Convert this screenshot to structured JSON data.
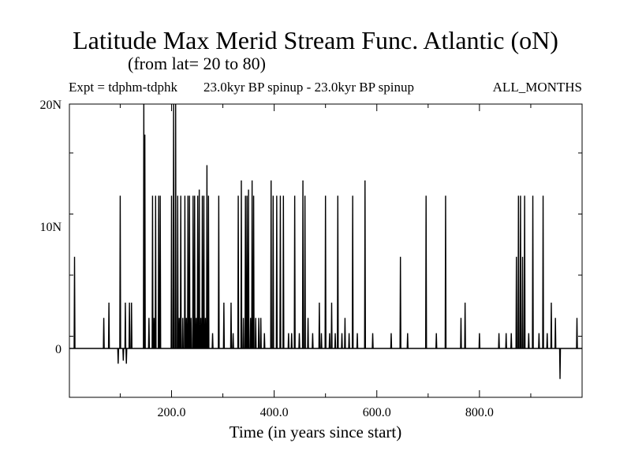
{
  "header": {
    "title": "Latitude Max Merid Stream Func. Atlantic (oN)",
    "subtitle": "(from lat= 20 to 80)",
    "expt": "Expt = tdphm-tdphk",
    "runs": "23.0kyr BP spinup - 23.0kyr BP spinup",
    "months": "ALL_MONTHS"
  },
  "chart_data": {
    "type": "line",
    "title": "Latitude Max Merid Stream Func. Atlantic (oN)",
    "xlabel": "Time (in years since start)",
    "ylabel": "",
    "xlim": [
      1,
      1000
    ],
    "ylim": [
      -4,
      20
    ],
    "x_ticks": [
      {
        "value": 200,
        "label": "200.0"
      },
      {
        "value": 400,
        "label": "400.0"
      },
      {
        "value": 600,
        "label": "600.0"
      },
      {
        "value": 800,
        "label": "800.0"
      }
    ],
    "y_ticks": [
      {
        "value": 0,
        "label": "0"
      },
      {
        "value": 10,
        "label": "10N"
      },
      {
        "value": 20,
        "label": "20N"
      }
    ],
    "baseline": 0,
    "series": [
      {
        "color": "#000000",
        "spikes": [
          [
            11,
            7.5
          ],
          [
            68,
            2.5
          ],
          [
            78,
            3.75
          ],
          [
            96,
            -1.25
          ],
          [
            100,
            12.5
          ],
          [
            106,
            -1.0
          ],
          [
            110,
            3.75
          ],
          [
            112,
            -1.25
          ],
          [
            118,
            3.75
          ],
          [
            122,
            3.75
          ],
          [
            146,
            20.0
          ],
          [
            148,
            17.5
          ],
          [
            156,
            2.5
          ],
          [
            163,
            12.5
          ],
          [
            166,
            2.5
          ],
          [
            169,
            12.5
          ],
          [
            175,
            12.5
          ],
          [
            178,
            12.5
          ],
          [
            200,
            12.5
          ],
          [
            204,
            20.0
          ],
          [
            208,
            20.0
          ],
          [
            212,
            12.5
          ],
          [
            215,
            2.5
          ],
          [
            218,
            12.5
          ],
          [
            222,
            2.5
          ],
          [
            226,
            12.5
          ],
          [
            229,
            2.5
          ],
          [
            232,
            12.5
          ],
          [
            235,
            12.5
          ],
          [
            238,
            2.5
          ],
          [
            242,
            12.5
          ],
          [
            245,
            12.5
          ],
          [
            248,
            2.5
          ],
          [
            251,
            12.5
          ],
          [
            254,
            13.0
          ],
          [
            257,
            2.5
          ],
          [
            260,
            12.5
          ],
          [
            263,
            12.5
          ],
          [
            266,
            2.5
          ],
          [
            269,
            15.0
          ],
          [
            272,
            12.5
          ],
          [
            280,
            1.25
          ],
          [
            292,
            12.5
          ],
          [
            302,
            3.75
          ],
          [
            316,
            3.75
          ],
          [
            320,
            1.25
          ],
          [
            330,
            12.5
          ],
          [
            336,
            13.75
          ],
          [
            340,
            2.5
          ],
          [
            344,
            12.5
          ],
          [
            347,
            12.5
          ],
          [
            350,
            13.0
          ],
          [
            354,
            2.5
          ],
          [
            357,
            13.75
          ],
          [
            360,
            12.5
          ],
          [
            364,
            2.5
          ],
          [
            370,
            2.5
          ],
          [
            374,
            2.5
          ],
          [
            381,
            1.25
          ],
          [
            394,
            13.75
          ],
          [
            398,
            12.5
          ],
          [
            405,
            12.5
          ],
          [
            412,
            12.5
          ],
          [
            418,
            12.5
          ],
          [
            428,
            1.25
          ],
          [
            434,
            1.25
          ],
          [
            440,
            12.5
          ],
          [
            449,
            1.25
          ],
          [
            456,
            13.75
          ],
          [
            460,
            12.5
          ],
          [
            466,
            2.5
          ],
          [
            475,
            1.25
          ],
          [
            488,
            3.75
          ],
          [
            492,
            1.25
          ],
          [
            500,
            12.5
          ],
          [
            508,
            1.25
          ],
          [
            512,
            3.75
          ],
          [
            519,
            1.25
          ],
          [
            524,
            12.5
          ],
          [
            532,
            1.25
          ],
          [
            538,
            2.5
          ],
          [
            546,
            1.25
          ],
          [
            553,
            12.5
          ],
          [
            562,
            1.25
          ],
          [
            577,
            13.75
          ],
          [
            592,
            1.25
          ],
          [
            628,
            1.25
          ],
          [
            646,
            7.5
          ],
          [
            660,
            1.25
          ],
          [
            696,
            12.5
          ],
          [
            716,
            1.25
          ],
          [
            734,
            12.5
          ],
          [
            764,
            2.5
          ],
          [
            772,
            3.75
          ],
          [
            800,
            1.25
          ],
          [
            838,
            1.25
          ],
          [
            852,
            1.25
          ],
          [
            862,
            1.25
          ],
          [
            872,
            7.5
          ],
          [
            876,
            12.5
          ],
          [
            880,
            12.5
          ],
          [
            884,
            7.5
          ],
          [
            888,
            12.5
          ],
          [
            896,
            1.25
          ],
          [
            904,
            12.5
          ],
          [
            916,
            1.25
          ],
          [
            924,
            12.5
          ],
          [
            932,
            1.25
          ],
          [
            940,
            3.75
          ],
          [
            948,
            2.5
          ],
          [
            957,
            -2.5
          ],
          [
            990,
            2.5
          ]
        ]
      }
    ]
  }
}
